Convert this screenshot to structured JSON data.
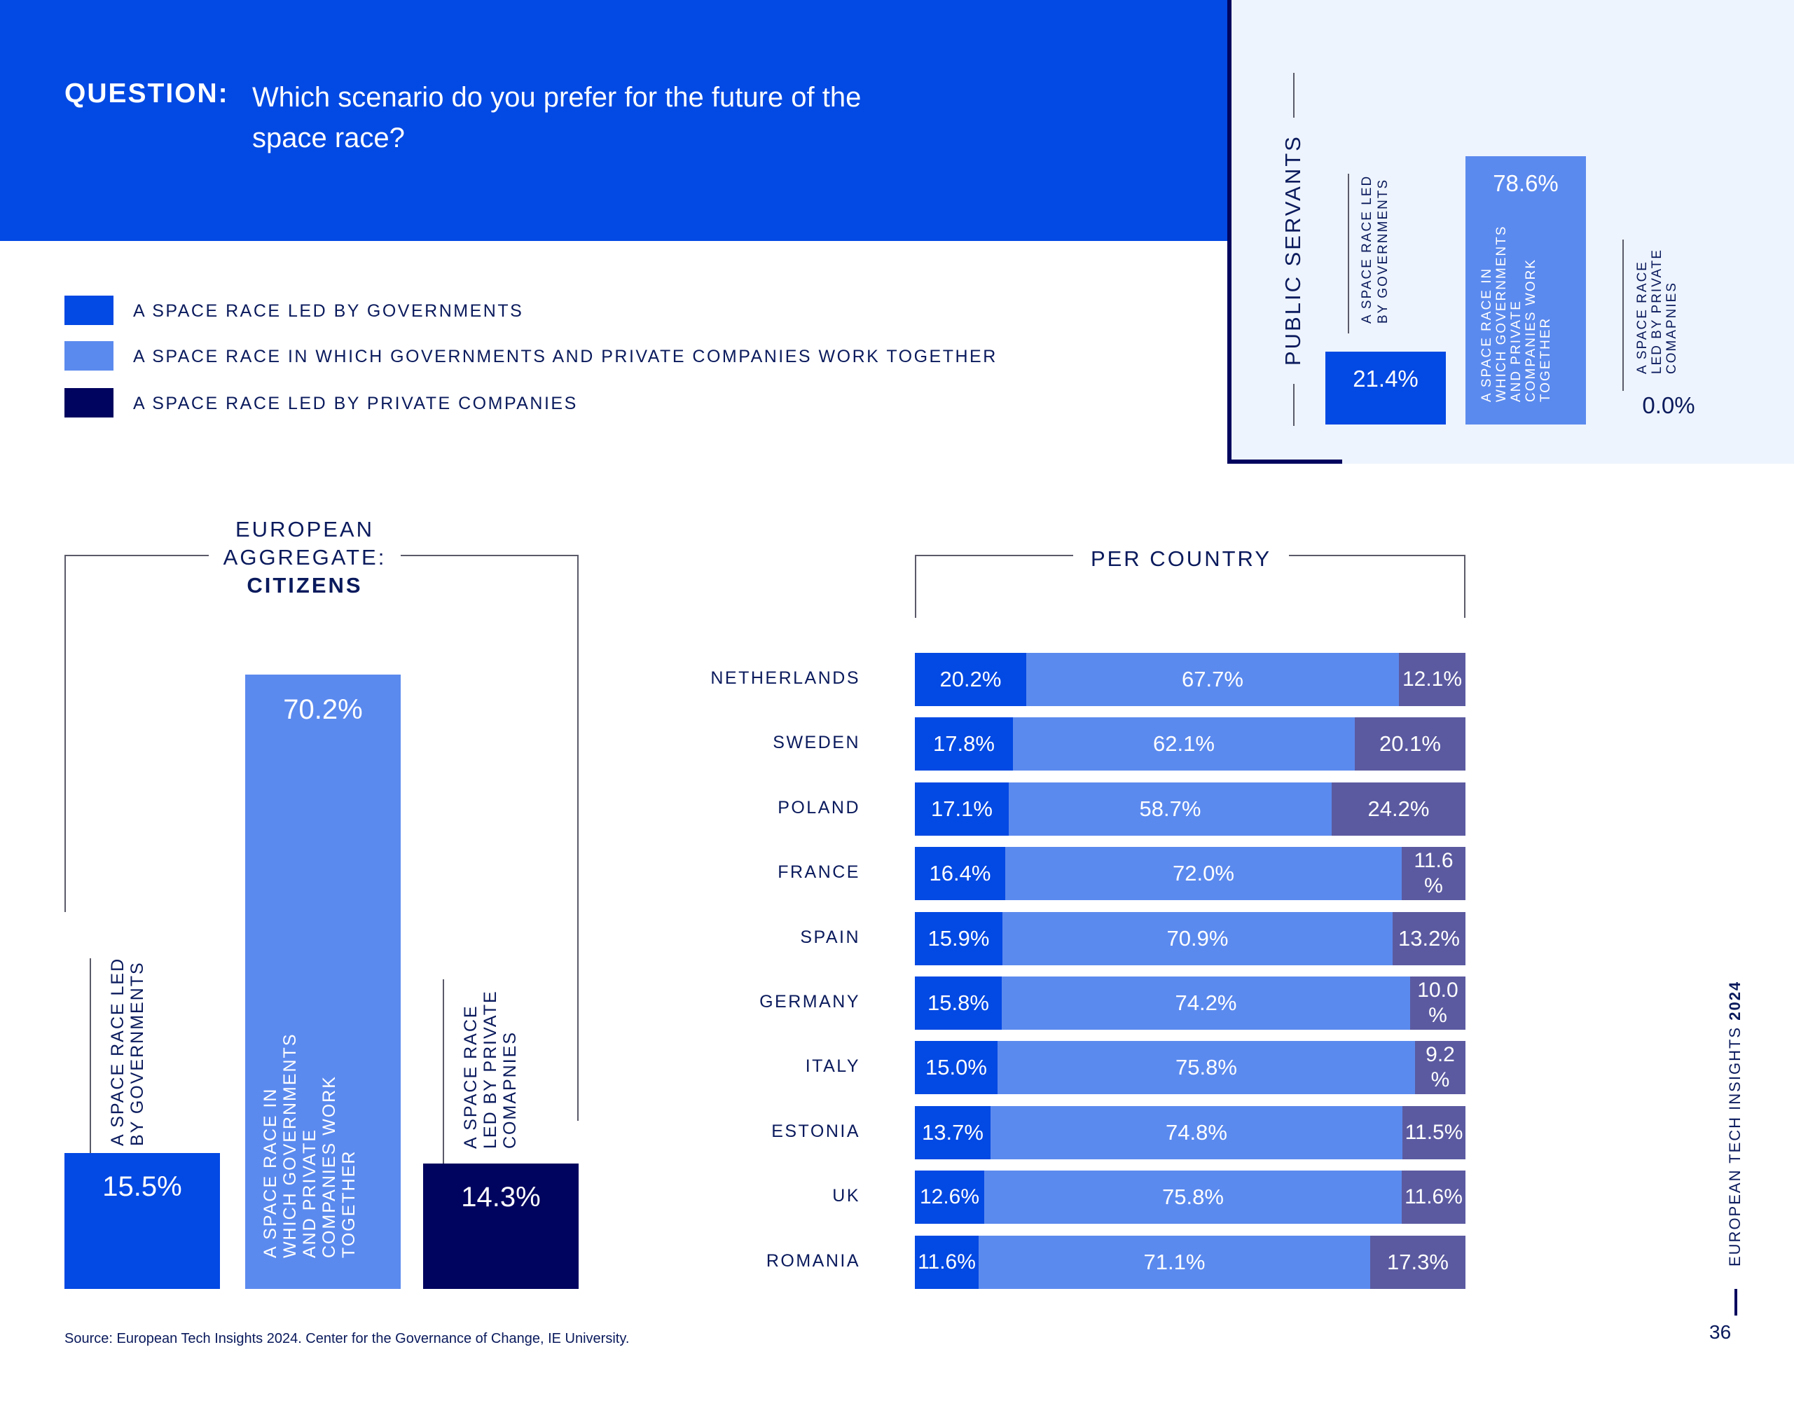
{
  "header": {
    "question_label": "QUESTION:",
    "question_text": "Which scenario do you prefer for the future of the space race?"
  },
  "legend": [
    {
      "label": "A SPACE RACE LED BY GOVERNMENTS",
      "color": "#0349e3"
    },
    {
      "label": "A SPACE RACE IN WHICH GOVERNMENTS AND PRIVATE COMPANIES WORK TOGETHER",
      "color": "#5b8aee"
    },
    {
      "label": "A SPACE RACE LED BY PRIVATE COMPANIES",
      "color": "#00045e"
    }
  ],
  "colors": {
    "governments": "#0349e3",
    "together": "#5b8aee",
    "private_aggregate": "#00045e",
    "private_country": "#5b5aa0"
  },
  "public_servants": {
    "title": "PUBLIC SERVANTS",
    "bars": [
      {
        "label": "A SPACE RACE LED BY GOVERNMENTS",
        "label_lines": [
          "A SPACE RACE LED",
          "BY GOVERNMENTS"
        ],
        "value": 21.4,
        "value_label": "21.4%"
      },
      {
        "label": "A SPACE RACE IN WHICH GOVERNMENTS AND PRIVATE COMPANIES WORK TOGETHER",
        "label_lines": [
          "A SPACE RACE IN",
          "WHICH GOVERNMENTS",
          "AND PRIVATE",
          "COMPANIES WORK",
          "TOGETHER"
        ],
        "value": 78.6,
        "value_label": "78.6%"
      },
      {
        "label": "A SPACE RACE LED BY PRIVATE COMAPNIES",
        "label_lines": [
          "A SPACE RACE",
          "LED BY PRIVATE",
          "COMAPNIES"
        ],
        "value": 0.0,
        "value_label": "0.0%"
      }
    ]
  },
  "aggregate": {
    "title_line1": "EUROPEAN",
    "title_line2": "AGGREGATE:",
    "title_line3": "CITIZENS",
    "bars": [
      {
        "label_lines": [
          "A SPACE RACE LED",
          "BY GOVERNMENTS"
        ],
        "value": 15.5,
        "value_label": "15.5%"
      },
      {
        "label_lines": [
          "A SPACE RACE IN",
          "WHICH GOVERNMENTS",
          "AND PRIVATE",
          "COMPANIES WORK",
          "TOGETHER"
        ],
        "value": 70.2,
        "value_label": "70.2%"
      },
      {
        "label_lines": [
          "A SPACE RACE",
          "LED BY PRIVATE",
          "COMAPNIES"
        ],
        "value": 14.3,
        "value_label": "14.3%"
      }
    ]
  },
  "per_country": {
    "title": "PER COUNTRY"
  },
  "chart_data": [
    {
      "type": "bar",
      "title": "PUBLIC SERVANTS",
      "categories": [
        "A SPACE RACE LED BY GOVERNMENTS",
        "A SPACE RACE IN WHICH GOVERNMENTS AND PRIVATE COMPANIES WORK TOGETHER",
        "A SPACE RACE LED BY PRIVATE COMAPNIES"
      ],
      "values": [
        21.4,
        78.6,
        0.0
      ]
    },
    {
      "type": "bar",
      "title": "EUROPEAN AGGREGATE: CITIZENS",
      "categories": [
        "A SPACE RACE LED BY GOVERNMENTS",
        "A SPACE RACE IN WHICH GOVERNMENTS AND PRIVATE COMPANIES WORK TOGETHER",
        "A SPACE RACE LED BY PRIVATE COMAPNIES"
      ],
      "values": [
        15.5,
        70.2,
        14.3
      ]
    },
    {
      "type": "bar",
      "title": "PER COUNTRY",
      "stacked": true,
      "orientation": "horizontal",
      "categories": [
        "NETHERLANDS",
        "SWEDEN",
        "POLAND",
        "FRANCE",
        "SPAIN",
        "GERMANY",
        "ITALY",
        "ESTONIA",
        "UK",
        "ROMANIA"
      ],
      "series": [
        {
          "name": "A SPACE RACE LED BY GOVERNMENTS",
          "values": [
            20.2,
            17.8,
            17.1,
            16.4,
            15.9,
            15.8,
            15.0,
            13.7,
            12.6,
            11.6
          ],
          "labels": [
            "20.2%",
            "17.8%",
            "17.1%",
            "16.4%",
            "15.9%",
            "15.8%",
            "15.0%",
            "13.7%",
            "12.6%",
            "11.6%"
          ]
        },
        {
          "name": "A SPACE RACE IN WHICH GOVERNMENTS AND PRIVATE COMPANIES WORK TOGETHER",
          "values": [
            67.7,
            62.1,
            58.7,
            72.0,
            70.9,
            74.2,
            75.8,
            74.8,
            75.8,
            71.1
          ],
          "labels": [
            "67.7%",
            "62.1%",
            "58.7%",
            "72.0%",
            "70.9%",
            "74.2%",
            "75.8%",
            "74.8%",
            "75.8%",
            "71.1%"
          ]
        },
        {
          "name": "A SPACE RACE LED BY PRIVATE COMPANIES",
          "values": [
            12.1,
            20.1,
            24.2,
            11.6,
            13.2,
            10.0,
            9.2,
            11.5,
            11.6,
            17.3
          ],
          "labels": [
            "12.1%",
            "20.1%",
            "24.2%",
            "11.6 %",
            "13.2%",
            "10.0 %",
            "9.2 %",
            "11.5%",
            "11.6%",
            "17.3%"
          ]
        }
      ]
    }
  ],
  "footer": {
    "source": "Source: European Tech Insights 2024. Center for the Governance of Change, IE University.",
    "side_title": "EUROPEAN TECH INSIGHTS",
    "side_year": "2024",
    "page_number": "36"
  }
}
